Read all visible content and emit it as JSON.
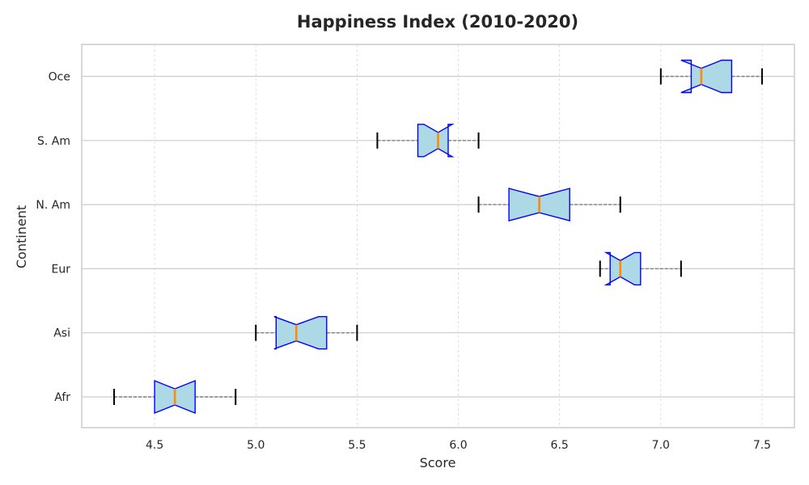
{
  "chart_data": {
    "type": "boxplot",
    "orientation": "horizontal",
    "title": "Happiness Index (2010-2020)",
    "xlabel": "Score",
    "ylabel": "Continent",
    "xlim": [
      4.14,
      7.66
    ],
    "xticks": [
      "4.5",
      "5.0",
      "5.5",
      "6.0",
      "6.5",
      "7.0",
      "7.5"
    ],
    "xtick_values": [
      4.5,
      5.0,
      5.5,
      6.0,
      6.5,
      7.0,
      7.5
    ],
    "grid": true,
    "notched": true,
    "categories": [
      "Afr",
      "Asi",
      "Eur",
      "N. Am",
      "S. Am",
      "Oce"
    ],
    "boxes": [
      {
        "label": "Afr",
        "whisker_low": 4.3,
        "q1": 4.5,
        "median": 4.6,
        "q3": 4.7,
        "whisker_high": 4.9,
        "notch_low": 4.5,
        "notch_high": 4.7
      },
      {
        "label": "Asi",
        "whisker_low": 5.0,
        "q1": 5.1,
        "median": 5.2,
        "q3": 5.35,
        "whisker_high": 5.5,
        "notch_low": 5.09,
        "notch_high": 5.31
      },
      {
        "label": "Eur",
        "whisker_low": 6.7,
        "q1": 6.75,
        "median": 6.8,
        "q3": 6.9,
        "whisker_high": 7.1,
        "notch_low": 6.73,
        "notch_high": 6.87
      },
      {
        "label": "N. Am",
        "whisker_low": 6.1,
        "q1": 6.25,
        "median": 6.4,
        "q3": 6.55,
        "whisker_high": 6.8,
        "notch_low": 6.25,
        "notch_high": 6.55
      },
      {
        "label": "S. Am",
        "whisker_low": 5.6,
        "q1": 5.8,
        "median": 5.9,
        "q3": 5.95,
        "whisker_high": 6.1,
        "notch_low": 5.83,
        "notch_high": 5.97
      },
      {
        "label": "Oce",
        "whisker_low": 7.0,
        "q1": 7.15,
        "median": 7.2,
        "q3": 7.35,
        "whisker_high": 7.5,
        "notch_low": 7.1,
        "notch_high": 7.3
      }
    ],
    "colors": {
      "box_fill": "#add8e6",
      "box_edge": "#0000ff",
      "median": "#ff8c00",
      "whisker": "#808080",
      "cap": "#000000",
      "grid": "#cccccc",
      "frame": "#cccccc",
      "text": "#262626"
    }
  }
}
